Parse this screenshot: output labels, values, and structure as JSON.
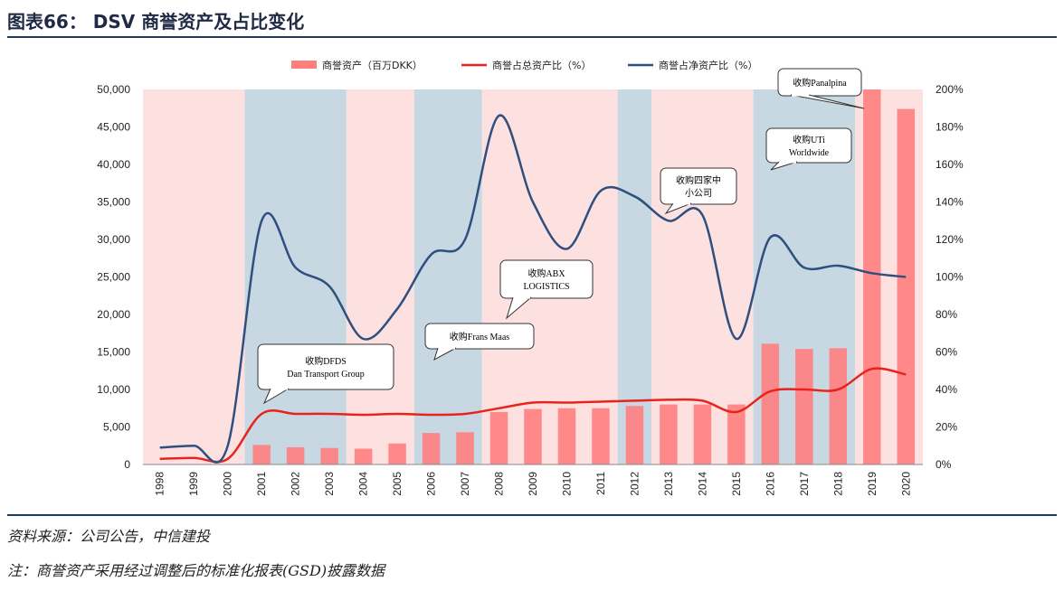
{
  "header": {
    "title": "图表66： DSV 商誉资产及占比变化"
  },
  "footer": {
    "source": "资料来源：公司公告，中信建投",
    "note": "注：商誉资产采用经过调整后的标准化报表(GSD)披露数据"
  },
  "chart_data": {
    "type": "bar",
    "categories": [
      "1998",
      "1999",
      "2000",
      "2001",
      "2002",
      "2003",
      "2004",
      "2005",
      "2006",
      "2007",
      "2008",
      "2009",
      "2010",
      "2011",
      "2012",
      "2013",
      "2014",
      "2015",
      "2016",
      "2017",
      "2018",
      "2019",
      "2020"
    ],
    "series": [
      {
        "name": "商誉资产（百万DKK）",
        "type": "bar",
        "axis": "left",
        "color": "#ff7f7f",
        "values": [
          0,
          0,
          0,
          2600,
          2300,
          2200,
          2100,
          2800,
          4200,
          4300,
          7000,
          7400,
          7500,
          7500,
          7800,
          8000,
          8000,
          8000,
          16100,
          15400,
          15500,
          50000,
          47400
        ]
      },
      {
        "name": "商誉占总资产比（%）",
        "type": "line",
        "axis": "right",
        "color": "#e8231c",
        "values": [
          3,
          3.5,
          3,
          27,
          27,
          27,
          26.5,
          27,
          26.5,
          27,
          30,
          33,
          33,
          33.5,
          34,
          34.5,
          34,
          28,
          39,
          40,
          40,
          51,
          48
        ]
      },
      {
        "name": "商誉占净资产比（%）",
        "type": "line",
        "axis": "right",
        "color": "#2f4f7f",
        "values": [
          9,
          10,
          10,
          130,
          105,
          95,
          67,
          83,
          112,
          120,
          186,
          140,
          115,
          146,
          143,
          130,
          133,
          67,
          121,
          105,
          106,
          102,
          100
        ]
      }
    ],
    "yleft": {
      "ylim": [
        0,
        50000
      ],
      "ticks": [
        "0",
        "5,000",
        "10,000",
        "15,000",
        "20,000",
        "25,000",
        "30,000",
        "35,000",
        "40,000",
        "45,000",
        "50,000"
      ]
    },
    "yright": {
      "ylim": [
        0,
        200
      ],
      "ticks": [
        "0%",
        "20%",
        "40%",
        "60%",
        "80%",
        "100%",
        "120%",
        "140%",
        "160%",
        "180%",
        "200%"
      ]
    },
    "shading": [
      {
        "from": "1998",
        "to": "2000",
        "color": "#fde0e0"
      },
      {
        "from": "2001",
        "to": "2003",
        "color": "#c7d8e3"
      },
      {
        "from": "2004",
        "to": "2005",
        "color": "#fde0e0"
      },
      {
        "from": "2006",
        "to": "2007",
        "color": "#c7d8e3"
      },
      {
        "from": "2008",
        "to": "2011",
        "color": "#fde0e0"
      },
      {
        "from": "2012",
        "to": "2012",
        "color": "#c7d8e3"
      },
      {
        "from": "2013",
        "to": "2015",
        "color": "#fde0e0"
      },
      {
        "from": "2016",
        "to": "2018",
        "color": "#c7d8e3"
      },
      {
        "from": "2019",
        "to": "2020",
        "color": "#fde0e0"
      }
    ],
    "annotations": [
      {
        "lines": [
          "收购DFDS",
          "Dan Transport Group"
        ],
        "year": "2001"
      },
      {
        "lines": [
          "收购Frans Maas"
        ],
        "year": "2006"
      },
      {
        "lines": [
          "收购ABX",
          "LOGISTICS"
        ],
        "year": "2008"
      },
      {
        "lines": [
          "收购四家中",
          "小公司"
        ],
        "year": "2013"
      },
      {
        "lines": [
          "收购UTi",
          "Worldwide"
        ],
        "year": "2016"
      },
      {
        "lines": [
          "收购Panalpina"
        ],
        "year": "2019"
      }
    ],
    "legend": "top"
  }
}
